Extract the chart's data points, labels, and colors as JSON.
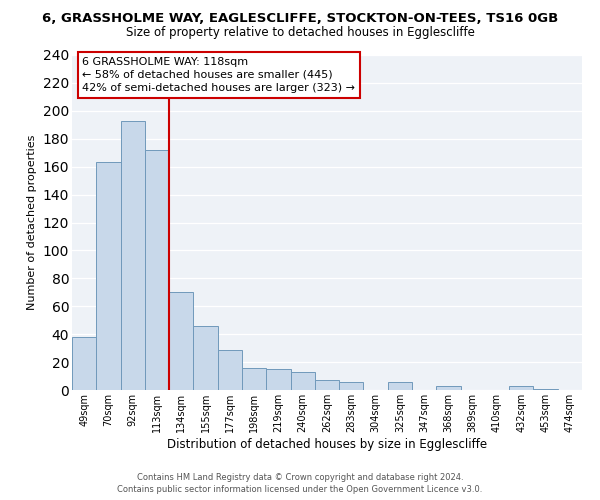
{
  "title": "6, GRASSHOLME WAY, EAGLESCLIFFE, STOCKTON-ON-TEES, TS16 0GB",
  "subtitle": "Size of property relative to detached houses in Egglescliffe",
  "xlabel": "Distribution of detached houses by size in Egglescliffe",
  "ylabel": "Number of detached properties",
  "bar_labels": [
    "49sqm",
    "70sqm",
    "92sqm",
    "113sqm",
    "134sqm",
    "155sqm",
    "177sqm",
    "198sqm",
    "219sqm",
    "240sqm",
    "262sqm",
    "283sqm",
    "304sqm",
    "325sqm",
    "347sqm",
    "368sqm",
    "389sqm",
    "410sqm",
    "432sqm",
    "453sqm",
    "474sqm"
  ],
  "bar_values": [
    38,
    163,
    193,
    172,
    70,
    46,
    29,
    16,
    15,
    13,
    7,
    6,
    0,
    6,
    0,
    3,
    0,
    0,
    3,
    1,
    0
  ],
  "bar_color": "#c8d8ea",
  "bar_edge_color": "#7099bb",
  "annotation_line1": "6 GRASSHOLME WAY: 118sqm",
  "annotation_line2": "← 58% of detached houses are smaller (445)",
  "annotation_line3": "42% of semi-detached houses are larger (323) →",
  "vline_x": 3.5,
  "vline_color": "#cc0000",
  "ylim": [
    0,
    240
  ],
  "yticks": [
    0,
    20,
    40,
    60,
    80,
    100,
    120,
    140,
    160,
    180,
    200,
    220,
    240
  ],
  "footer_line1": "Contains HM Land Registry data © Crown copyright and database right 2024.",
  "footer_line2": "Contains public sector information licensed under the Open Government Licence v3.0.",
  "bg_color": "#eef2f7"
}
